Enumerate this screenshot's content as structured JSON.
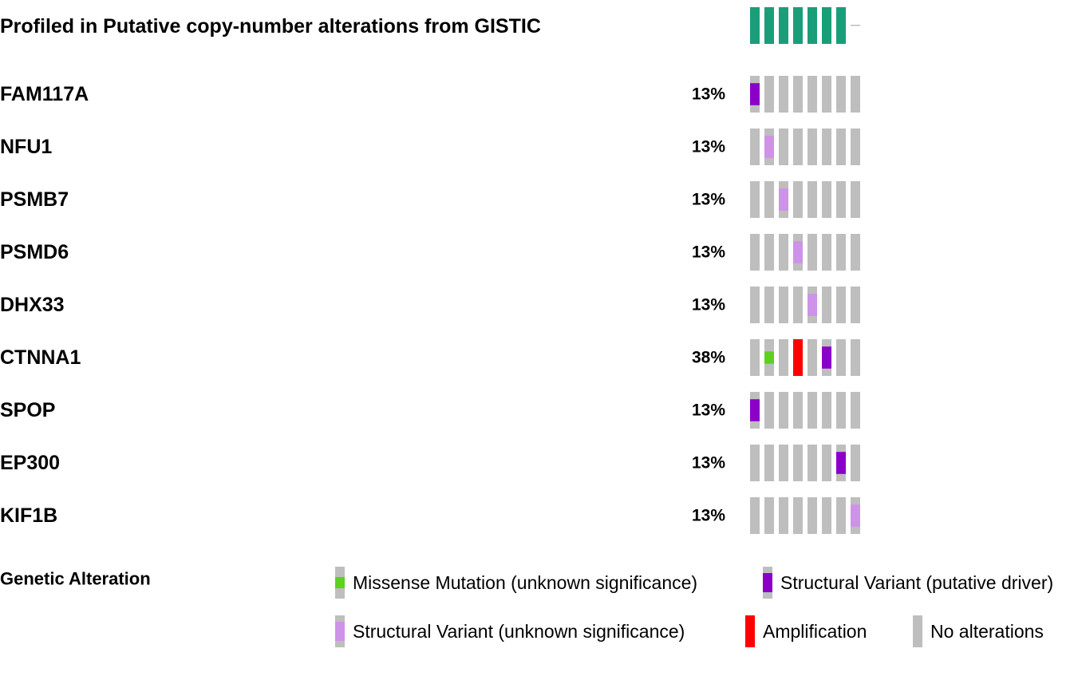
{
  "chart_data": {
    "type": "oncoprint",
    "title": "Profiled in Putative copy-number alterations from GISTIC",
    "num_samples": 8,
    "profiled": [
      1,
      1,
      1,
      1,
      1,
      1,
      1,
      0
    ],
    "profiled_color": "#1a9e7a",
    "genes": [
      {
        "name": "FAM117A",
        "pct": "13%",
        "alterations": [
          "sv_driver",
          "none",
          "none",
          "none",
          "none",
          "none",
          "none",
          "none"
        ]
      },
      {
        "name": "NFU1",
        "pct": "13%",
        "alterations": [
          "none",
          "sv_unknown",
          "none",
          "none",
          "none",
          "none",
          "none",
          "none"
        ]
      },
      {
        "name": "PSMB7",
        "pct": "13%",
        "alterations": [
          "none",
          "none",
          "sv_unknown",
          "none",
          "none",
          "none",
          "none",
          "none"
        ]
      },
      {
        "name": "PSMD6",
        "pct": "13%",
        "alterations": [
          "none",
          "none",
          "none",
          "sv_unknown",
          "none",
          "none",
          "none",
          "none"
        ]
      },
      {
        "name": "DHX33",
        "pct": "13%",
        "alterations": [
          "none",
          "none",
          "none",
          "none",
          "sv_unknown",
          "none",
          "none",
          "none"
        ]
      },
      {
        "name": "CTNNA1",
        "pct": "38%",
        "alterations": [
          "none",
          "missense",
          "none",
          "amplification",
          "none",
          "sv_driver",
          "none",
          "none"
        ]
      },
      {
        "name": "SPOP",
        "pct": "13%",
        "alterations": [
          "sv_driver",
          "none",
          "none",
          "none",
          "none",
          "none",
          "none",
          "none"
        ]
      },
      {
        "name": "EP300",
        "pct": "13%",
        "alterations": [
          "none",
          "none",
          "none",
          "none",
          "none",
          "none",
          "sv_driver",
          "none"
        ]
      },
      {
        "name": "KIF1B",
        "pct": "13%",
        "alterations": [
          "none",
          "none",
          "none",
          "none",
          "none",
          "none",
          "none",
          "sv_unknown"
        ]
      }
    ],
    "legend_title": "Genetic Alteration",
    "legend": [
      {
        "key": "missense",
        "label": "Missense Mutation (unknown significance)"
      },
      {
        "key": "sv_driver",
        "label": "Structural Variant (putative driver)"
      },
      {
        "key": "sv_unknown",
        "label": "Structural Variant (unknown significance)"
      },
      {
        "key": "amplification",
        "label": "Amplification"
      },
      {
        "key": "none",
        "label": "No alterations"
      }
    ],
    "colors": {
      "none": "#bebebe",
      "missense": "#5dd11b",
      "sv_driver": "#8b00c9",
      "sv_unknown": "#ce92e8",
      "amplification": "#ff0000"
    }
  }
}
